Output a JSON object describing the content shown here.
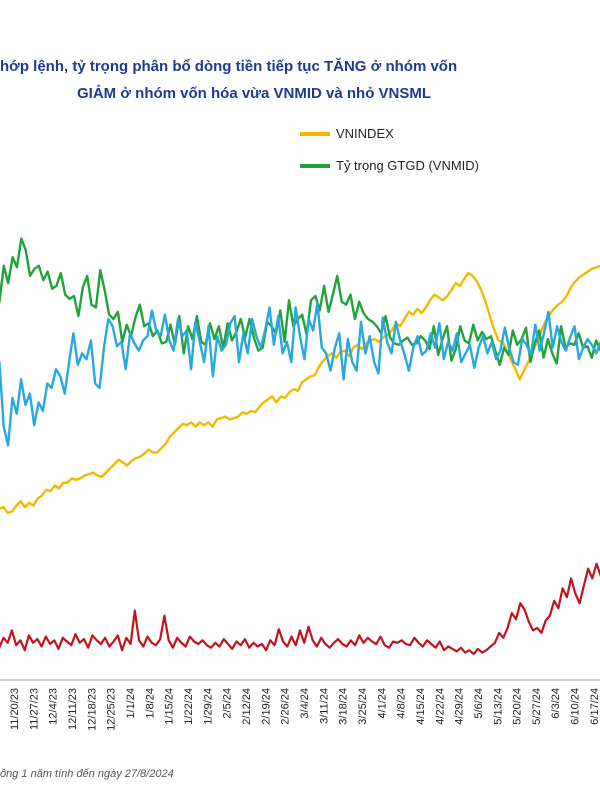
{
  "title_line1": "hớp lệnh, tỷ trọng phân bổ dòng tiền tiếp tục TĂNG ở nhóm vốn",
  "title_line2": "GIẢM ở nhóm vốn hóa vừa VNMID và nhỏ VNSML",
  "footnote": "ông 1 năm tính đến ngày 27/8/2024",
  "colors": {
    "vnindex": "#f5b800",
    "vnmid": "#22a33a",
    "vnsml": "#29a8e0",
    "red_series": "#c0141c",
    "title": "#1f3a93"
  },
  "chart_data": {
    "type": "line",
    "title": "hớp lệnh, tỷ trọng phân bổ dòng tiền tiếp tục TĂNG ở nhóm vốn GIẢM ở nhóm vốn hóa vừa VNMID và nhỏ VNSML",
    "x_tick_labels": [
      "11/20/23",
      "11/27/23",
      "12/4/23",
      "12/11/23",
      "12/18/23",
      "12/25/23",
      "1/1/24",
      "1/8/24",
      "1/15/24",
      "1/22/24",
      "1/29/24",
      "2/5/24",
      "2/12/24",
      "2/19/24",
      "2/26/24",
      "3/4/24",
      "3/11/24",
      "3/18/24",
      "3/25/24",
      "4/1/24",
      "4/8/24",
      "4/15/24",
      "4/22/24",
      "4/29/24",
      "5/6/24",
      "5/13/24",
      "5/20/24",
      "5/27/24",
      "6/3/24",
      "6/10/24",
      "6/17/24"
    ],
    "legend": [
      "VNINDEX",
      "Tỷ trọng GTGD (VNMID)"
    ],
    "legend_position": "top-right",
    "grid": false,
    "series": [
      {
        "name": "VNINDEX",
        "values": [
          0.3,
          0.28,
          0.29,
          0.25,
          0.26,
          0.3,
          0.33,
          0.29,
          0.32,
          0.3,
          0.35,
          0.37,
          0.41,
          0.4,
          0.44,
          0.42,
          0.46,
          0.46,
          0.49,
          0.48,
          0.49,
          0.51,
          0.52,
          0.53,
          0.51,
          0.5,
          0.53,
          0.56,
          0.59,
          0.62,
          0.6,
          0.58,
          0.61,
          0.63,
          0.64,
          0.66,
          0.69,
          0.67,
          0.67,
          0.7,
          0.73,
          0.78,
          0.81,
          0.84,
          0.87,
          0.86,
          0.88,
          0.85,
          0.88,
          0.86,
          0.88,
          0.85,
          0.9,
          0.91,
          0.92,
          0.9,
          0.91,
          0.92,
          0.95,
          0.94,
          0.96,
          0.95,
          0.99,
          1.02,
          1.04,
          1.06,
          1.02,
          1.06,
          1.05,
          1.09,
          1.11,
          1.1,
          1.16,
          1.18,
          1.2,
          1.21,
          1.27,
          1.31,
          1.34,
          1.36,
          1.33,
          1.37,
          1.38,
          1.34,
          1.4,
          1.42,
          1.39,
          1.43,
          1.45,
          1.46,
          1.44,
          1.47,
          1.49,
          1.52,
          1.57,
          1.55,
          1.6,
          1.65,
          1.63,
          1.67,
          1.64,
          1.68,
          1.73,
          1.77,
          1.75,
          1.73,
          1.76,
          1.8,
          1.85,
          1.83,
          1.88,
          1.92,
          1.9,
          1.86,
          1.8,
          1.72,
          1.62,
          1.53,
          1.45,
          1.44,
          1.38,
          1.31,
          1.25,
          1.18,
          1.24,
          1.3,
          1.36,
          1.44,
          1.51,
          1.58,
          1.63,
          1.67,
          1.7,
          1.72,
          1.76,
          1.82,
          1.86,
          1.89,
          1.91,
          1.93,
          1.95,
          1.96,
          1.97,
          1.94
        ]
      },
      {
        "name": "Tỷ trọng GTGD (VNMID)",
        "values": [
          2.0,
          1.72,
          1.97,
          1.85,
          2.03,
          1.96,
          2.16,
          2.08,
          1.9,
          1.95,
          1.97,
          1.87,
          1.93,
          1.81,
          1.83,
          1.92,
          1.77,
          1.74,
          1.76,
          1.62,
          1.82,
          1.9,
          1.7,
          1.68,
          1.94,
          1.8,
          1.63,
          1.6,
          1.65,
          1.44,
          1.56,
          1.48,
          1.61,
          1.7,
          1.55,
          1.57,
          1.48,
          1.52,
          1.43,
          1.44,
          1.56,
          1.42,
          1.62,
          1.36,
          1.55,
          1.46,
          1.62,
          1.44,
          1.42,
          1.57,
          1.46,
          1.55,
          1.4,
          1.57,
          1.45,
          1.51,
          1.6,
          1.47,
          1.6,
          1.47,
          1.38,
          1.4,
          1.58,
          1.55,
          1.5,
          1.66,
          1.44,
          1.73,
          1.55,
          1.6,
          1.63,
          1.49,
          1.73,
          1.76,
          1.66,
          1.83,
          1.65,
          1.77,
          1.9,
          1.72,
          1.7,
          1.77,
          1.6,
          1.72,
          1.64,
          1.6,
          1.58,
          1.55,
          1.5,
          1.62,
          1.47,
          1.43,
          1.42,
          1.45,
          1.47,
          1.42,
          1.43,
          1.48,
          1.45,
          1.39,
          1.55,
          1.35,
          1.46,
          1.55,
          1.31,
          1.39,
          1.55,
          1.45,
          1.43,
          1.56,
          1.45,
          1.51,
          1.46,
          1.48,
          1.38,
          1.28,
          1.4,
          1.35,
          1.52,
          1.42,
          1.46,
          1.54,
          1.3,
          1.43,
          1.52,
          1.33,
          1.46,
          1.36,
          1.29,
          1.55,
          1.4,
          1.43,
          1.42,
          1.5,
          1.4,
          1.41,
          1.33,
          1.45,
          1.38,
          1.39
        ]
      },
      {
        "name": "",
        "values": [
          1.15,
          1.3,
          0.85,
          0.72,
          1.05,
          0.94,
          1.18,
          1.0,
          1.08,
          0.86,
          1.02,
          0.96,
          1.15,
          1.12,
          1.25,
          1.2,
          1.08,
          1.3,
          1.5,
          1.28,
          1.36,
          1.32,
          1.45,
          1.15,
          1.12,
          1.4,
          1.6,
          1.55,
          1.41,
          1.44,
          1.25,
          1.5,
          1.43,
          1.38,
          1.45,
          1.48,
          1.66,
          1.52,
          1.48,
          1.63,
          1.45,
          1.38,
          1.6,
          1.48,
          1.52,
          1.25,
          1.58,
          1.44,
          1.3,
          1.55,
          1.2,
          1.48,
          1.38,
          1.42,
          1.57,
          1.62,
          1.3,
          1.5,
          1.36,
          1.6,
          1.48,
          1.4,
          1.52,
          1.68,
          1.42,
          1.62,
          1.36,
          1.44,
          1.3,
          1.68,
          1.48,
          1.32,
          1.6,
          1.52,
          1.71,
          1.4,
          1.36,
          1.24,
          1.4,
          1.5,
          1.18,
          1.46,
          1.3,
          1.24,
          1.58,
          1.36,
          1.48,
          1.3,
          1.22,
          1.61,
          1.44,
          1.36,
          1.58,
          1.45,
          1.35,
          1.24,
          1.4,
          1.48,
          1.35,
          1.38,
          1.5,
          1.4,
          1.57,
          1.32,
          1.44,
          1.38,
          1.5,
          1.3,
          1.36,
          1.42,
          1.26,
          1.4,
          1.48,
          1.36,
          1.44,
          1.32,
          1.38,
          1.54,
          1.4,
          1.3,
          1.28,
          1.46,
          1.42,
          1.35,
          1.56,
          1.38,
          1.5,
          1.65,
          1.4,
          1.55,
          1.44,
          1.38,
          1.47,
          1.55,
          1.32,
          1.4,
          1.46,
          1.42,
          1.36,
          1.44,
          1.5
        ]
      },
      {
        "name": "",
        "values": [
          0.2,
          0.14,
          0.22,
          0.18,
          0.28,
          0.16,
          0.2,
          0.12,
          0.24,
          0.18,
          0.21,
          0.15,
          0.23,
          0.17,
          0.2,
          0.13,
          0.22,
          0.19,
          0.16,
          0.25,
          0.18,
          0.21,
          0.14,
          0.24,
          0.2,
          0.17,
          0.22,
          0.15,
          0.19,
          0.24,
          0.12,
          0.22,
          0.17,
          0.44,
          0.2,
          0.15,
          0.23,
          0.18,
          0.16,
          0.21,
          0.4,
          0.2,
          0.14,
          0.22,
          0.18,
          0.15,
          0.23,
          0.19,
          0.17,
          0.2,
          0.16,
          0.14,
          0.18,
          0.15,
          0.21,
          0.17,
          0.13,
          0.19,
          0.16,
          0.21,
          0.14,
          0.18,
          0.15,
          0.17,
          0.12,
          0.2,
          0.16,
          0.29,
          0.19,
          0.15,
          0.23,
          0.16,
          0.28,
          0.18,
          0.31,
          0.2,
          0.15,
          0.22,
          0.17,
          0.14,
          0.18,
          0.21,
          0.17,
          0.15,
          0.2,
          0.16,
          0.24,
          0.18,
          0.22,
          0.19,
          0.17,
          0.23,
          0.16,
          0.14,
          0.19,
          0.18,
          0.2,
          0.17,
          0.16,
          0.22,
          0.18,
          0.15,
          0.2,
          0.17,
          0.14,
          0.19,
          0.12,
          0.15,
          0.13,
          0.11,
          0.14,
          0.1,
          0.12,
          0.09,
          0.13,
          0.1,
          0.12,
          0.15,
          0.18,
          0.26,
          0.22,
          0.3,
          0.42,
          0.37,
          0.5,
          0.45,
          0.35,
          0.28,
          0.3,
          0.26,
          0.36,
          0.4,
          0.52,
          0.46,
          0.62,
          0.55,
          0.7,
          0.58,
          0.5,
          0.64,
          0.78,
          0.7,
          0.82,
          0.72,
          0.6
        ]
      }
    ]
  }
}
